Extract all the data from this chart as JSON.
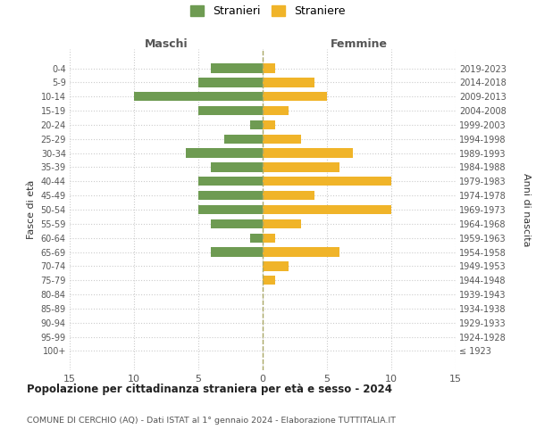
{
  "age_groups": [
    "100+",
    "95-99",
    "90-94",
    "85-89",
    "80-84",
    "75-79",
    "70-74",
    "65-69",
    "60-64",
    "55-59",
    "50-54",
    "45-49",
    "40-44",
    "35-39",
    "30-34",
    "25-29",
    "20-24",
    "15-19",
    "10-14",
    "5-9",
    "0-4"
  ],
  "birth_years": [
    "≤ 1923",
    "1924-1928",
    "1929-1933",
    "1934-1938",
    "1939-1943",
    "1944-1948",
    "1949-1953",
    "1954-1958",
    "1959-1963",
    "1964-1968",
    "1969-1973",
    "1974-1978",
    "1979-1983",
    "1984-1988",
    "1989-1993",
    "1994-1998",
    "1999-2003",
    "2004-2008",
    "2009-2013",
    "2014-2018",
    "2019-2023"
  ],
  "maschi": [
    0,
    0,
    0,
    0,
    0,
    0,
    0,
    4,
    1,
    4,
    5,
    5,
    5,
    4,
    6,
    3,
    1,
    5,
    10,
    5,
    4
  ],
  "femmine": [
    0,
    0,
    0,
    0,
    0,
    1,
    2,
    6,
    1,
    3,
    10,
    4,
    10,
    6,
    7,
    3,
    1,
    2,
    5,
    4,
    1
  ],
  "maschi_color": "#6e9b52",
  "femmine_color": "#f0b429",
  "title": "Popolazione per cittadinanza straniera per età e sesso - 2024",
  "subtitle": "COMUNE DI CERCHIO (AQ) - Dati ISTAT al 1° gennaio 2024 - Elaborazione TUTTITALIA.IT",
  "left_label": "Maschi",
  "right_label": "Femmine",
  "left_axis_label": "Fasce di età",
  "right_axis_label": "Anni di nascita",
  "legend_maschi": "Stranieri",
  "legend_femmine": "Straniere",
  "xlim": 15,
  "background_color": "#ffffff",
  "grid_color": "#cccccc",
  "dashed_line_color": "#aaa866"
}
